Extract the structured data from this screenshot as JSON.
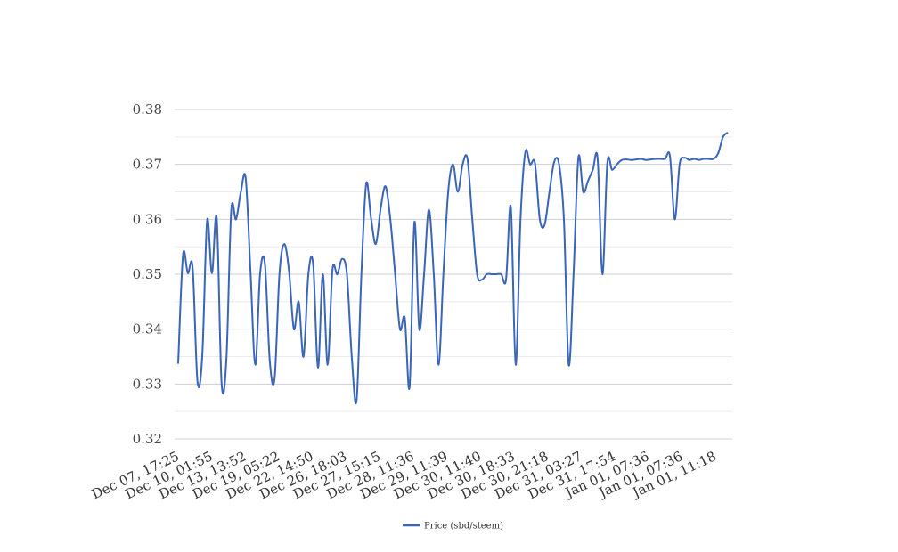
{
  "chart_data": {
    "type": "line",
    "title": "",
    "xlabel": "",
    "ylabel": "",
    "ylim": [
      0.32,
      0.38
    ],
    "yticks": [
      "0.32",
      "0.33",
      "0.34",
      "0.35",
      "0.36",
      "0.37",
      "0.38"
    ],
    "xtick_labels": [
      "Dec 07, 17:25",
      "Dec 10, 01:55",
      "Dec 13, 13:52",
      "Dec 19, 05:22",
      "Dec 22, 14:50",
      "Dec 26, 18:03",
      "Dec 27, 15:15",
      "Dec 28, 11:36",
      "Dec 29, 11:39",
      "Dec 30, 11:40",
      "Dec 30, 18:33",
      "Dec 30, 21:18",
      "Dec 31, 03:27",
      "Dec 31, 17:54",
      "Jan 01, 07:36",
      "Jan 01, 07:36",
      "Jan 01, 11:18"
    ],
    "grid": true,
    "legend_position": "bottom",
    "series": [
      {
        "name": "Price (sbd/steem)",
        "color": "#3a65b8",
        "values": [
          0.3337,
          0.3535,
          0.3502,
          0.3512,
          0.3305,
          0.3352,
          0.3598,
          0.3502,
          0.3602,
          0.3302,
          0.3345,
          0.3615,
          0.36,
          0.365,
          0.3675,
          0.3505,
          0.3335,
          0.3502,
          0.3518,
          0.3342,
          0.331,
          0.35,
          0.3555,
          0.3505,
          0.34,
          0.345,
          0.335,
          0.35,
          0.3518,
          0.333,
          0.35,
          0.3335,
          0.3508,
          0.35,
          0.3528,
          0.35,
          0.335,
          0.327,
          0.35,
          0.3665,
          0.3602,
          0.3555,
          0.362,
          0.366,
          0.36,
          0.35,
          0.34,
          0.342,
          0.3295,
          0.3595,
          0.34,
          0.35,
          0.3618,
          0.3502,
          0.3335,
          0.35,
          0.365,
          0.37,
          0.365,
          0.37,
          0.371,
          0.36,
          0.35,
          0.349,
          0.35,
          0.35,
          0.35,
          0.35,
          0.349,
          0.3622,
          0.3335,
          0.36,
          0.3722,
          0.37,
          0.3702,
          0.36,
          0.359,
          0.365,
          0.3705,
          0.37,
          0.36,
          0.3335,
          0.35,
          0.3712,
          0.365,
          0.367,
          0.369,
          0.371,
          0.35,
          0.3702,
          0.369,
          0.37,
          0.3708,
          0.3709,
          0.3708,
          0.3709,
          0.371,
          0.3708,
          0.3709,
          0.371,
          0.371,
          0.371,
          0.3715,
          0.36,
          0.37,
          0.3712,
          0.3708,
          0.371,
          0.3708,
          0.371,
          0.371,
          0.371,
          0.372,
          0.375,
          0.3758
        ]
      }
    ]
  }
}
